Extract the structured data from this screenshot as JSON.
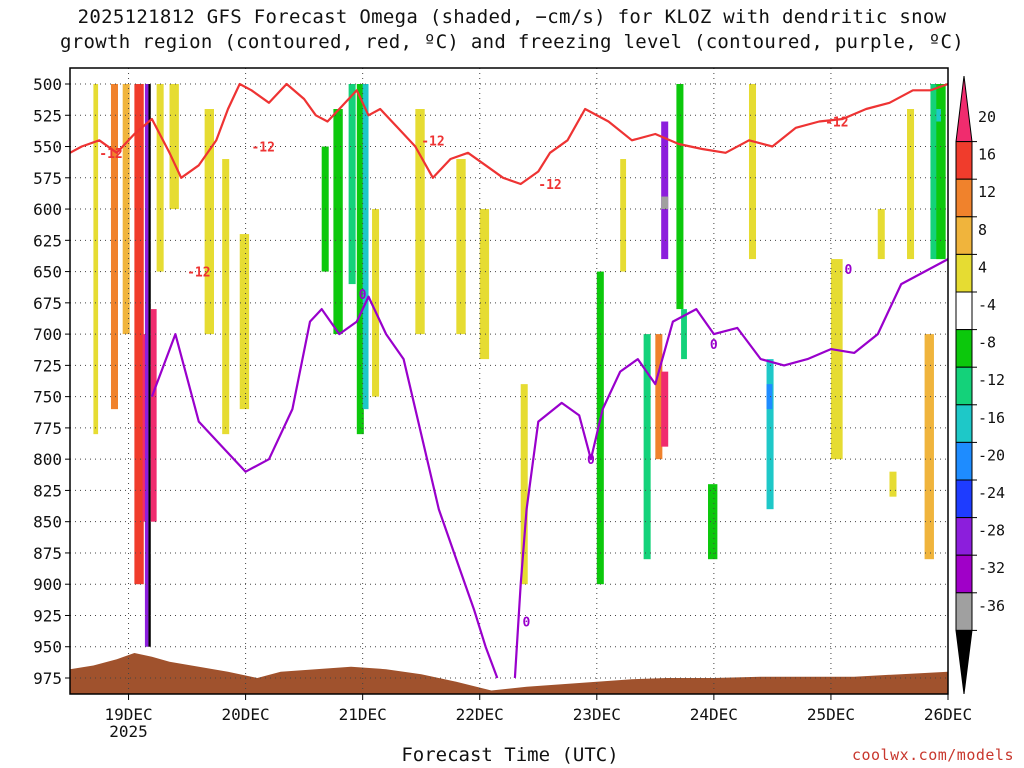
{
  "header": {
    "title_line1": "2025121812 GFS Forecast Omega (shaded, −cm/s) for KLOZ with dendritic snow",
    "title_line2": "growth region (contoured, red, ºC) and freezing level (contoured, purple, ºC)"
  },
  "footer": {
    "xlabel": "Forecast Time (UTC)",
    "credit": "coolwx.com/models"
  },
  "chart_data": {
    "type": "heatmap",
    "x_ticks": [
      "19DEC",
      "20DEC",
      "21DEC",
      "22DEC",
      "23DEC",
      "24DEC",
      "25DEC",
      "26DEC"
    ],
    "x_subtick": "2025",
    "x_range_days": [
      18.5,
      26.0
    ],
    "y_ticks": [
      500,
      525,
      550,
      575,
      600,
      625,
      650,
      675,
      700,
      725,
      750,
      775,
      800,
      825,
      850,
      875,
      900,
      925,
      950,
      975
    ],
    "y_range": [
      500,
      975
    ],
    "grid": true,
    "colorbar": {
      "ticks": [
        20,
        16,
        12,
        8,
        4,
        -4,
        -8,
        -12,
        -16,
        -20,
        -24,
        -28,
        -32,
        -36
      ],
      "colors": [
        "#f02c6e",
        "#f03c2c",
        "#f0822c",
        "#f0b43c",
        "#e6dc32",
        "#ffffff",
        "#0cc80c",
        "#14d27a",
        "#1ec8c8",
        "#1e8cff",
        "#1e3cff",
        "#8c1edc",
        "#a000c8",
        "#a0a0a0",
        "#000000"
      ]
    },
    "contours": {
      "dgz_label": "-12",
      "dgz_color": "#ee3333",
      "freezing_label": "0",
      "freezing_color": "#9900cc"
    },
    "terrain_color": "#a0522d",
    "omega_cells": [
      {
        "t": 18.7,
        "dt": 0.04,
        "p0": 500,
        "p1": 780,
        "c": 4
      },
      {
        "t": 18.85,
        "dt": 0.06,
        "p0": 500,
        "p1": 760,
        "c": 2
      },
      {
        "t": 18.95,
        "dt": 0.06,
        "p0": 500,
        "p1": 700,
        "c": 3
      },
      {
        "t": 19.05,
        "dt": 0.08,
        "p0": 500,
        "p1": 900,
        "c": 1
      },
      {
        "t": 19.12,
        "dt": 0.03,
        "p0": 700,
        "p1": 850,
        "c": 0
      },
      {
        "t": 19.14,
        "dt": 0.03,
        "p0": 500,
        "p1": 950,
        "c": 11
      },
      {
        "t": 19.17,
        "dt": 0.02,
        "p0": 500,
        "p1": 950,
        "c": 14
      },
      {
        "t": 19.19,
        "dt": 0.05,
        "p0": 680,
        "p1": 850,
        "c": 0
      },
      {
        "t": 19.24,
        "dt": 0.06,
        "p0": 500,
        "p1": 650,
        "c": 4
      },
      {
        "t": 19.35,
        "dt": 0.08,
        "p0": 500,
        "p1": 600,
        "c": 4
      },
      {
        "t": 19.65,
        "dt": 0.08,
        "p0": 520,
        "p1": 700,
        "c": 4
      },
      {
        "t": 19.8,
        "dt": 0.06,
        "p0": 560,
        "p1": 780,
        "c": 4
      },
      {
        "t": 19.95,
        "dt": 0.08,
        "p0": 620,
        "p1": 760,
        "c": 4
      },
      {
        "t": 20.65,
        "dt": 0.06,
        "p0": 550,
        "p1": 650,
        "c": 6
      },
      {
        "t": 20.75,
        "dt": 0.08,
        "p0": 520,
        "p1": 700,
        "c": 6
      },
      {
        "t": 20.88,
        "dt": 0.06,
        "p0": 500,
        "p1": 660,
        "c": 7
      },
      {
        "t": 20.95,
        "dt": 0.06,
        "p0": 500,
        "p1": 780,
        "c": 6
      },
      {
        "t": 21.0,
        "dt": 0.05,
        "p0": 500,
        "p1": 760,
        "c": 8
      },
      {
        "t": 21.08,
        "dt": 0.06,
        "p0": 600,
        "p1": 750,
        "c": 4
      },
      {
        "t": 21.45,
        "dt": 0.08,
        "p0": 520,
        "p1": 700,
        "c": 4
      },
      {
        "t": 21.8,
        "dt": 0.08,
        "p0": 560,
        "p1": 700,
        "c": 4
      },
      {
        "t": 22.0,
        "dt": 0.08,
        "p0": 600,
        "p1": 720,
        "c": 4
      },
      {
        "t": 22.35,
        "dt": 0.06,
        "p0": 740,
        "p1": 900,
        "c": 4
      },
      {
        "t": 23.0,
        "dt": 0.06,
        "p0": 650,
        "p1": 900,
        "c": 6
      },
      {
        "t": 23.2,
        "dt": 0.05,
        "p0": 560,
        "p1": 650,
        "c": 4
      },
      {
        "t": 23.4,
        "dt": 0.06,
        "p0": 700,
        "p1": 880,
        "c": 7
      },
      {
        "t": 23.5,
        "dt": 0.06,
        "p0": 700,
        "p1": 800,
        "c": 2
      },
      {
        "t": 23.55,
        "dt": 0.06,
        "p0": 730,
        "p1": 790,
        "c": 0
      },
      {
        "t": 23.55,
        "dt": 0.06,
        "p0": 530,
        "p1": 640,
        "c": 11
      },
      {
        "t": 23.55,
        "dt": 0.06,
        "p0": 590,
        "p1": 600,
        "c": 13
      },
      {
        "t": 23.68,
        "dt": 0.06,
        "p0": 500,
        "p1": 680,
        "c": 6
      },
      {
        "t": 23.72,
        "dt": 0.05,
        "p0": 680,
        "p1": 720,
        "c": 7
      },
      {
        "t": 23.95,
        "dt": 0.08,
        "p0": 820,
        "p1": 880,
        "c": 6
      },
      {
        "t": 24.3,
        "dt": 0.06,
        "p0": 500,
        "p1": 640,
        "c": 4
      },
      {
        "t": 24.45,
        "dt": 0.06,
        "p0": 720,
        "p1": 840,
        "c": 8
      },
      {
        "t": 24.45,
        "dt": 0.05,
        "p0": 740,
        "p1": 760,
        "c": 9
      },
      {
        "t": 25.0,
        "dt": 0.1,
        "p0": 640,
        "p1": 800,
        "c": 4
      },
      {
        "t": 25.4,
        "dt": 0.06,
        "p0": 600,
        "p1": 640,
        "c": 4
      },
      {
        "t": 25.5,
        "dt": 0.06,
        "p0": 810,
        "p1": 830,
        "c": 4
      },
      {
        "t": 25.65,
        "dt": 0.06,
        "p0": 520,
        "p1": 640,
        "c": 4
      },
      {
        "t": 25.8,
        "dt": 0.08,
        "p0": 700,
        "p1": 880,
        "c": 3
      },
      {
        "t": 25.85,
        "dt": 0.12,
        "p0": 500,
        "p1": 640,
        "c": 7
      },
      {
        "t": 25.9,
        "dt": 0.08,
        "p0": 500,
        "p1": 640,
        "c": 6
      },
      {
        "t": 25.9,
        "dt": 0.04,
        "p0": 520,
        "p1": 530,
        "c": 8
      }
    ],
    "dgz_contour": [
      [
        18.5,
        555
      ],
      [
        18.6,
        550
      ],
      [
        18.75,
        545
      ],
      [
        18.9,
        555
      ],
      [
        19.05,
        540
      ],
      [
        19.2,
        528
      ],
      [
        19.35,
        555
      ],
      [
        19.45,
        575
      ],
      [
        19.6,
        565
      ],
      [
        19.75,
        545
      ],
      [
        19.85,
        520
      ],
      [
        19.95,
        500
      ],
      [
        20.05,
        505
      ],
      [
        20.2,
        515
      ],
      [
        20.35,
        500
      ],
      [
        20.5,
        512
      ],
      [
        20.6,
        525
      ],
      [
        20.7,
        530
      ],
      [
        20.8,
        520
      ],
      [
        20.95,
        505
      ],
      [
        21.05,
        525
      ],
      [
        21.15,
        520
      ],
      [
        21.3,
        535
      ],
      [
        21.45,
        550
      ],
      [
        21.6,
        575
      ],
      [
        21.75,
        560
      ],
      [
        21.9,
        555
      ],
      [
        22.05,
        565
      ],
      [
        22.2,
        575
      ],
      [
        22.35,
        580
      ],
      [
        22.5,
        570
      ],
      [
        22.6,
        555
      ],
      [
        22.75,
        545
      ],
      [
        22.9,
        520
      ],
      [
        23.1,
        530
      ],
      [
        23.3,
        545
      ],
      [
        23.5,
        540
      ],
      [
        23.7,
        548
      ],
      [
        23.9,
        552
      ],
      [
        24.1,
        555
      ],
      [
        24.3,
        545
      ],
      [
        24.5,
        550
      ],
      [
        24.7,
        535
      ],
      [
        24.9,
        530
      ],
      [
        25.1,
        528
      ],
      [
        25.3,
        520
      ],
      [
        25.5,
        515
      ],
      [
        25.7,
        505
      ],
      [
        25.85,
        505
      ],
      [
        26.0,
        500
      ]
    ],
    "freezing_contour": [
      [
        19.2,
        750
      ],
      [
        19.4,
        700
      ],
      [
        19.6,
        770
      ],
      [
        19.8,
        790
      ],
      [
        20.0,
        810
      ],
      [
        20.2,
        800
      ],
      [
        20.4,
        760
      ],
      [
        20.55,
        690
      ],
      [
        20.65,
        680
      ],
      [
        20.8,
        700
      ],
      [
        20.95,
        690
      ],
      [
        21.05,
        670
      ],
      [
        21.2,
        700
      ],
      [
        21.35,
        720
      ],
      [
        21.5,
        780
      ],
      [
        21.65,
        840
      ],
      [
        21.8,
        880
      ],
      [
        21.95,
        920
      ],
      [
        22.05,
        950
      ],
      [
        22.15,
        975
      ]
    ],
    "freezing_contour_2": [
      [
        22.3,
        975
      ],
      [
        22.35,
        900
      ],
      [
        22.4,
        840
      ],
      [
        22.5,
        770
      ],
      [
        22.7,
        755
      ],
      [
        22.85,
        765
      ],
      [
        22.95,
        800
      ],
      [
        23.05,
        760
      ],
      [
        23.2,
        730
      ],
      [
        23.35,
        720
      ],
      [
        23.5,
        740
      ],
      [
        23.65,
        690
      ],
      [
        23.85,
        680
      ],
      [
        24.0,
        700
      ],
      [
        24.2,
        695
      ],
      [
        24.4,
        720
      ],
      [
        24.6,
        725
      ],
      [
        24.8,
        720
      ],
      [
        25.0,
        712
      ],
      [
        25.2,
        715
      ],
      [
        25.4,
        700
      ],
      [
        25.6,
        660
      ],
      [
        25.8,
        650
      ],
      [
        26.0,
        640
      ]
    ],
    "terrain": [
      [
        18.5,
        968
      ],
      [
        18.7,
        965
      ],
      [
        18.9,
        960
      ],
      [
        19.05,
        955
      ],
      [
        19.2,
        958
      ],
      [
        19.35,
        962
      ],
      [
        19.6,
        966
      ],
      [
        19.85,
        970
      ],
      [
        20.1,
        975
      ],
      [
        20.3,
        970
      ],
      [
        20.6,
        968
      ],
      [
        20.9,
        966
      ],
      [
        21.2,
        968
      ],
      [
        21.5,
        972
      ],
      [
        21.8,
        978
      ],
      [
        22.1,
        985
      ],
      [
        22.4,
        982
      ],
      [
        22.7,
        980
      ],
      [
        23.0,
        978
      ],
      [
        23.3,
        976
      ],
      [
        23.6,
        975
      ],
      [
        24.0,
        975
      ],
      [
        24.4,
        974
      ],
      [
        24.8,
        974
      ],
      [
        25.2,
        974
      ],
      [
        25.6,
        972
      ],
      [
        26.0,
        970
      ]
    ]
  }
}
